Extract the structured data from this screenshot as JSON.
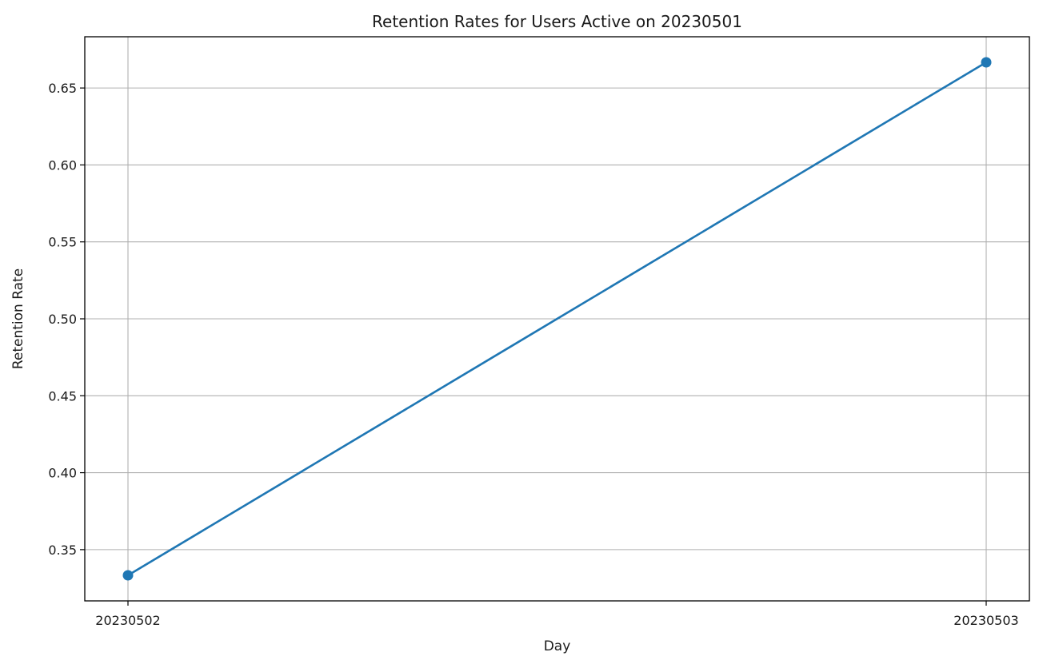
{
  "chart_data": {
    "type": "line",
    "title": "Retention Rates for Users Active on 20230501",
    "xlabel": "Day",
    "ylabel": "Retention Rate",
    "categories": [
      "20230502",
      "20230503"
    ],
    "series": [
      {
        "values": [
          0.3333,
          0.6667
        ]
      }
    ],
    "ylim": [
      0.3167,
      0.6833
    ],
    "yticks": [
      0.35,
      0.4,
      0.45,
      0.5,
      0.55,
      0.6,
      0.65
    ],
    "ytick_labels": [
      "0.35",
      "0.40",
      "0.45",
      "0.50",
      "0.55",
      "0.60",
      "0.65"
    ],
    "grid": true,
    "colors": {
      "series": "#1f77b4",
      "grid": "#b0b0b0",
      "axes": "#000000"
    },
    "marker": "circle"
  }
}
